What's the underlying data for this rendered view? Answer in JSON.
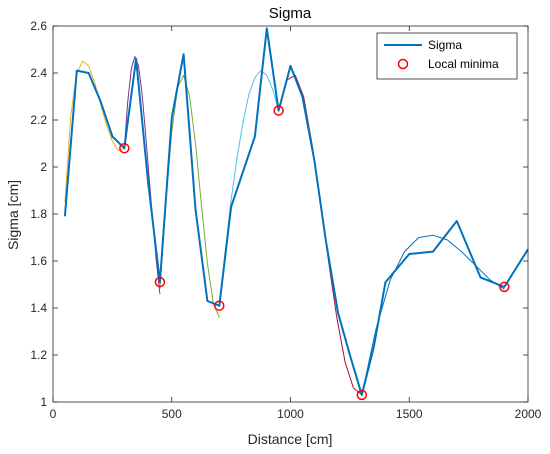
{
  "chart_data": {
    "type": "line",
    "title": "Sigma",
    "xlabel": "Distance [cm]",
    "ylabel": "Sigma [cm]",
    "xlim": [
      0,
      2000
    ],
    "ylim": [
      1,
      2.6
    ],
    "x_ticks": [
      0,
      500,
      1000,
      1500,
      2000
    ],
    "y_ticks": [
      1,
      1.2,
      1.4,
      1.6,
      1.8,
      2,
      2.2,
      2.4,
      2.6
    ],
    "x_tick_labels": [
      "0",
      "500",
      "1000",
      "1500",
      "2000"
    ],
    "y_tick_labels": [
      "1",
      "1.2",
      "1.4",
      "1.6",
      "1.8",
      "2",
      "2.2",
      "2.4",
      "2.6"
    ],
    "grid": false,
    "legend_position": "top-right",
    "series": [
      {
        "name": "Sigma",
        "color": "#0072BD",
        "x": [
          50,
          100,
          150,
          200,
          250,
          300,
          350,
          400,
          450,
          500,
          550,
          600,
          650,
          700,
          750,
          800,
          850,
          900,
          950,
          1000,
          1050,
          1100,
          1150,
          1200,
          1250,
          1300,
          1350,
          1400,
          1500,
          1600,
          1700,
          1800,
          1900,
          2000
        ],
        "y": [
          1.79,
          2.41,
          2.4,
          2.28,
          2.13,
          2.08,
          2.46,
          1.94,
          1.51,
          2.21,
          2.48,
          1.82,
          1.43,
          1.41,
          1.83,
          1.98,
          2.13,
          2.59,
          2.24,
          2.43,
          2.3,
          2.03,
          1.68,
          1.38,
          1.2,
          1.03,
          1.23,
          1.51,
          1.63,
          1.64,
          1.77,
          1.53,
          1.49,
          1.65
        ]
      },
      {
        "name": "Local minima",
        "color": "#ff0000",
        "x": [
          300,
          450,
          700,
          950,
          1300,
          1900
        ],
        "y": [
          2.08,
          1.51,
          1.41,
          2.24,
          1.03,
          1.49
        ]
      }
    ],
    "fit_curves": [
      {
        "color": "#EDB120",
        "x": [
          50,
          75,
          100,
          125,
          150,
          175,
          200,
          225,
          250,
          275,
          300
        ],
        "y": [
          1.85,
          2.22,
          2.4,
          2.45,
          2.43,
          2.36,
          2.27,
          2.18,
          2.11,
          2.07,
          2.08
        ]
      },
      {
        "color": "#7E2F8E",
        "x": [
          300,
          315,
          330,
          345,
          360,
          375,
          390,
          405,
          420,
          435,
          450
        ],
        "y": [
          2.08,
          2.28,
          2.42,
          2.47,
          2.43,
          2.31,
          2.14,
          1.95,
          1.77,
          1.6,
          1.46
        ]
      },
      {
        "color": "#77AC30",
        "x": [
          450,
          475,
          500,
          525,
          550,
          575,
          600,
          625,
          650,
          675,
          700
        ],
        "y": [
          1.48,
          1.85,
          2.15,
          2.34,
          2.39,
          2.3,
          2.1,
          1.84,
          1.59,
          1.42,
          1.36
        ]
      },
      {
        "color": "#4DBEEE",
        "x": [
          700,
          725,
          750,
          775,
          800,
          825,
          850,
          875,
          900,
          925,
          950
        ],
        "y": [
          1.41,
          1.64,
          1.86,
          2.04,
          2.19,
          2.31,
          2.38,
          2.41,
          2.39,
          2.33,
          2.24
        ]
      },
      {
        "color": "#A2142F",
        "x": [
          950,
          985,
          1020,
          1055,
          1090,
          1125,
          1160,
          1195,
          1230,
          1265,
          1300
        ],
        "y": [
          2.24,
          2.37,
          2.39,
          2.3,
          2.1,
          1.86,
          1.6,
          1.36,
          1.17,
          1.06,
          1.03
        ]
      },
      {
        "color": "#0072BD",
        "x": [
          1300,
          1360,
          1420,
          1480,
          1540,
          1600,
          1660,
          1720,
          1780,
          1840,
          1900
        ],
        "y": [
          1.03,
          1.31,
          1.52,
          1.64,
          1.7,
          1.71,
          1.69,
          1.64,
          1.58,
          1.52,
          1.48
        ]
      },
      {
        "color": "#D95319",
        "x": [
          1900,
          1950,
          2000
        ],
        "y": [
          1.49,
          1.57,
          1.65
        ]
      }
    ]
  }
}
